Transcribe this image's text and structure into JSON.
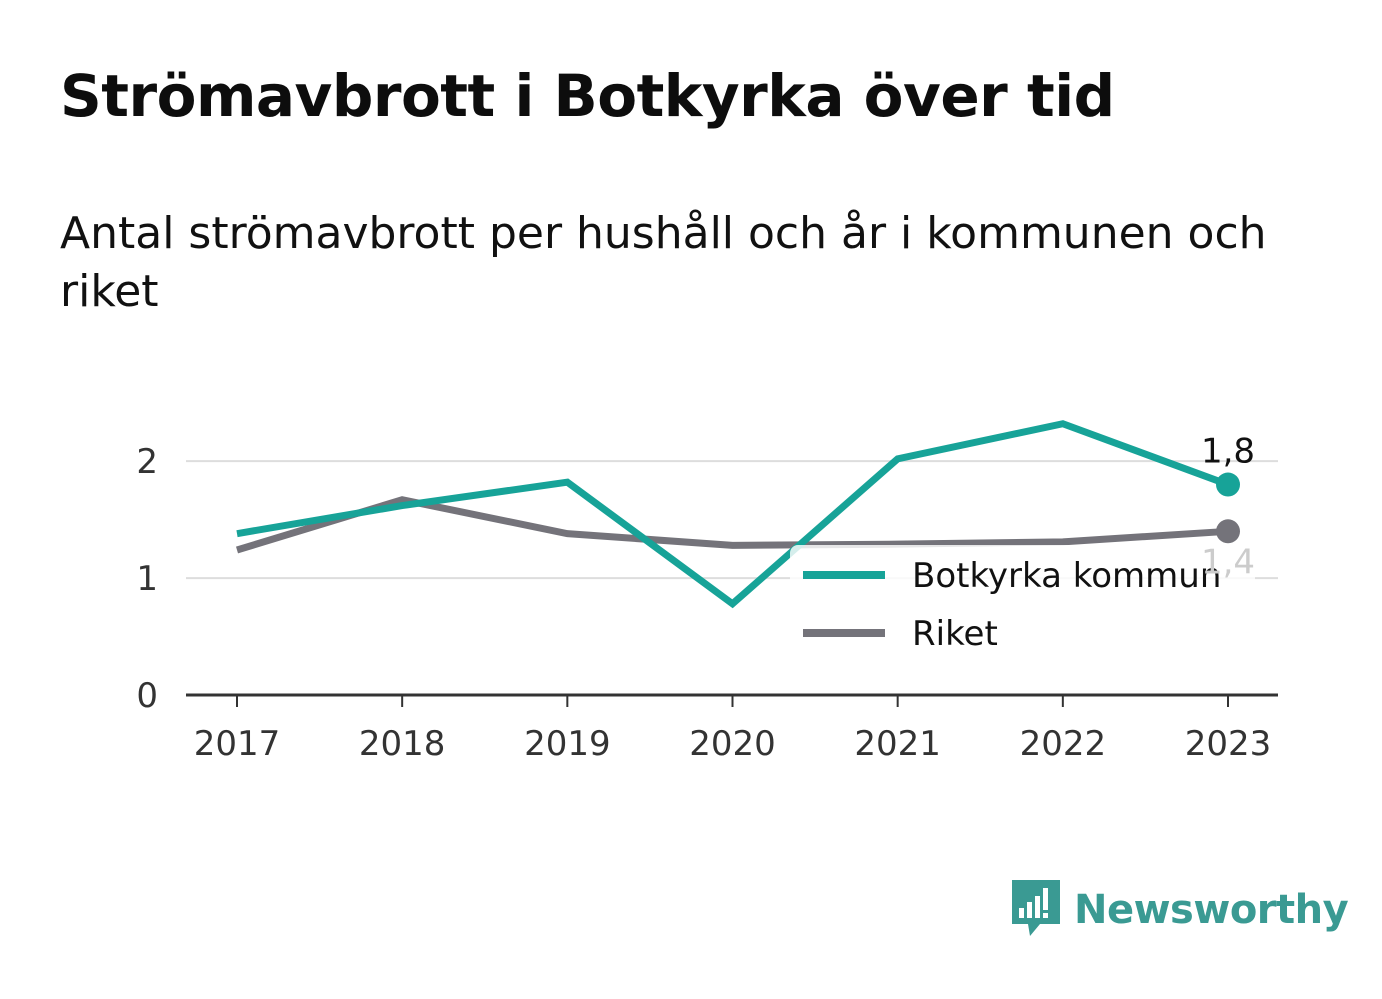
{
  "header": {
    "title": "Strömavbrott i Botkyrka över tid",
    "subtitle": "Antal strömavbrott per hushåll och år i kommunen och riket"
  },
  "chart_data": {
    "type": "line",
    "x": [
      "2017",
      "2018",
      "2019",
      "2020",
      "2021",
      "2022",
      "2023"
    ],
    "series": [
      {
        "name": "Botkyrka kommun",
        "color": "#17a398",
        "values": [
          1.38,
          1.62,
          1.82,
          0.78,
          2.02,
          2.32,
          1.8
        ],
        "end_label": "1,8"
      },
      {
        "name": "Riket",
        "color": "#74737a",
        "values": [
          1.24,
          1.67,
          1.38,
          1.28,
          1.29,
          1.31,
          1.4
        ],
        "end_label": "1,4"
      }
    ],
    "y_ticks": [
      0,
      1,
      2
    ],
    "ylim": [
      0,
      2.6
    ],
    "grid": true,
    "legend_position": "bottom-right"
  },
  "brand": {
    "name": "Newsworthy",
    "icon": "newsworthy-logo-icon",
    "color": "#3a9a93"
  }
}
